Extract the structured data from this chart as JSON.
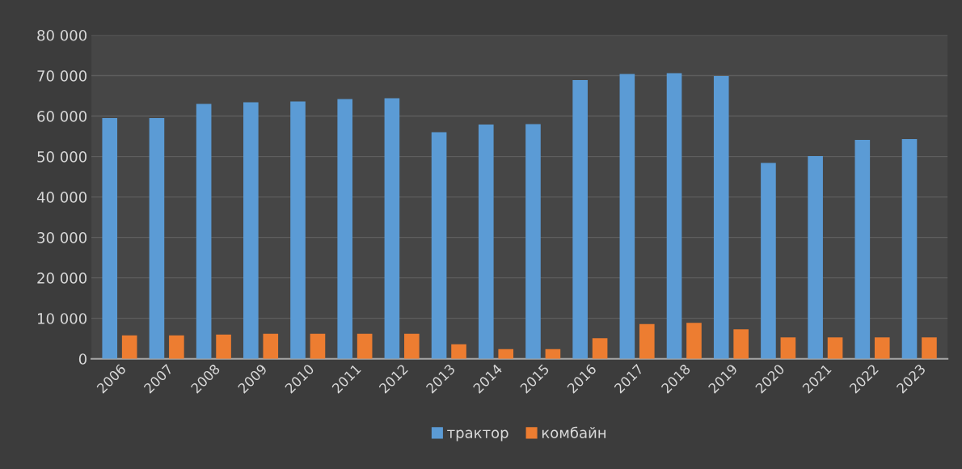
{
  "chart_data": {
    "type": "bar",
    "categories": [
      "2006",
      "2007",
      "2008",
      "2009",
      "2010",
      "2011",
      "2012",
      "2013",
      "2014",
      "2015",
      "2016",
      "2017",
      "2018",
      "2019",
      "2020",
      "2021",
      "2022",
      "2023"
    ],
    "series": [
      {
        "name": "трактор",
        "color": "#5b9bd5",
        "values": [
          59500,
          59500,
          63000,
          63400,
          63600,
          64200,
          64400,
          56000,
          57900,
          58000,
          68900,
          70400,
          70600,
          69900,
          48400,
          50100,
          54100,
          54300
        ]
      },
      {
        "name": "комбайн",
        "color": "#ed7d31",
        "values": [
          5800,
          5800,
          6000,
          6200,
          6200,
          6200,
          6200,
          3600,
          2400,
          2400,
          5100,
          8600,
          8900,
          7300,
          5300,
          5300,
          5300,
          5300
        ]
      }
    ],
    "ylim": [
      0,
      80000
    ],
    "yticks": [
      {
        "value": 0,
        "label": "0"
      },
      {
        "value": 10000,
        "label": "10 000"
      },
      {
        "value": 20000,
        "label": "20 000"
      },
      {
        "value": 30000,
        "label": "30 000"
      },
      {
        "value": 40000,
        "label": "40 000"
      },
      {
        "value": 50000,
        "label": "50 000"
      },
      {
        "value": 60000,
        "label": "60 000"
      },
      {
        "value": 70000,
        "label": "70 000"
      },
      {
        "value": 80000,
        "label": "80 000"
      }
    ],
    "grid": "y",
    "legend": "bottom"
  }
}
